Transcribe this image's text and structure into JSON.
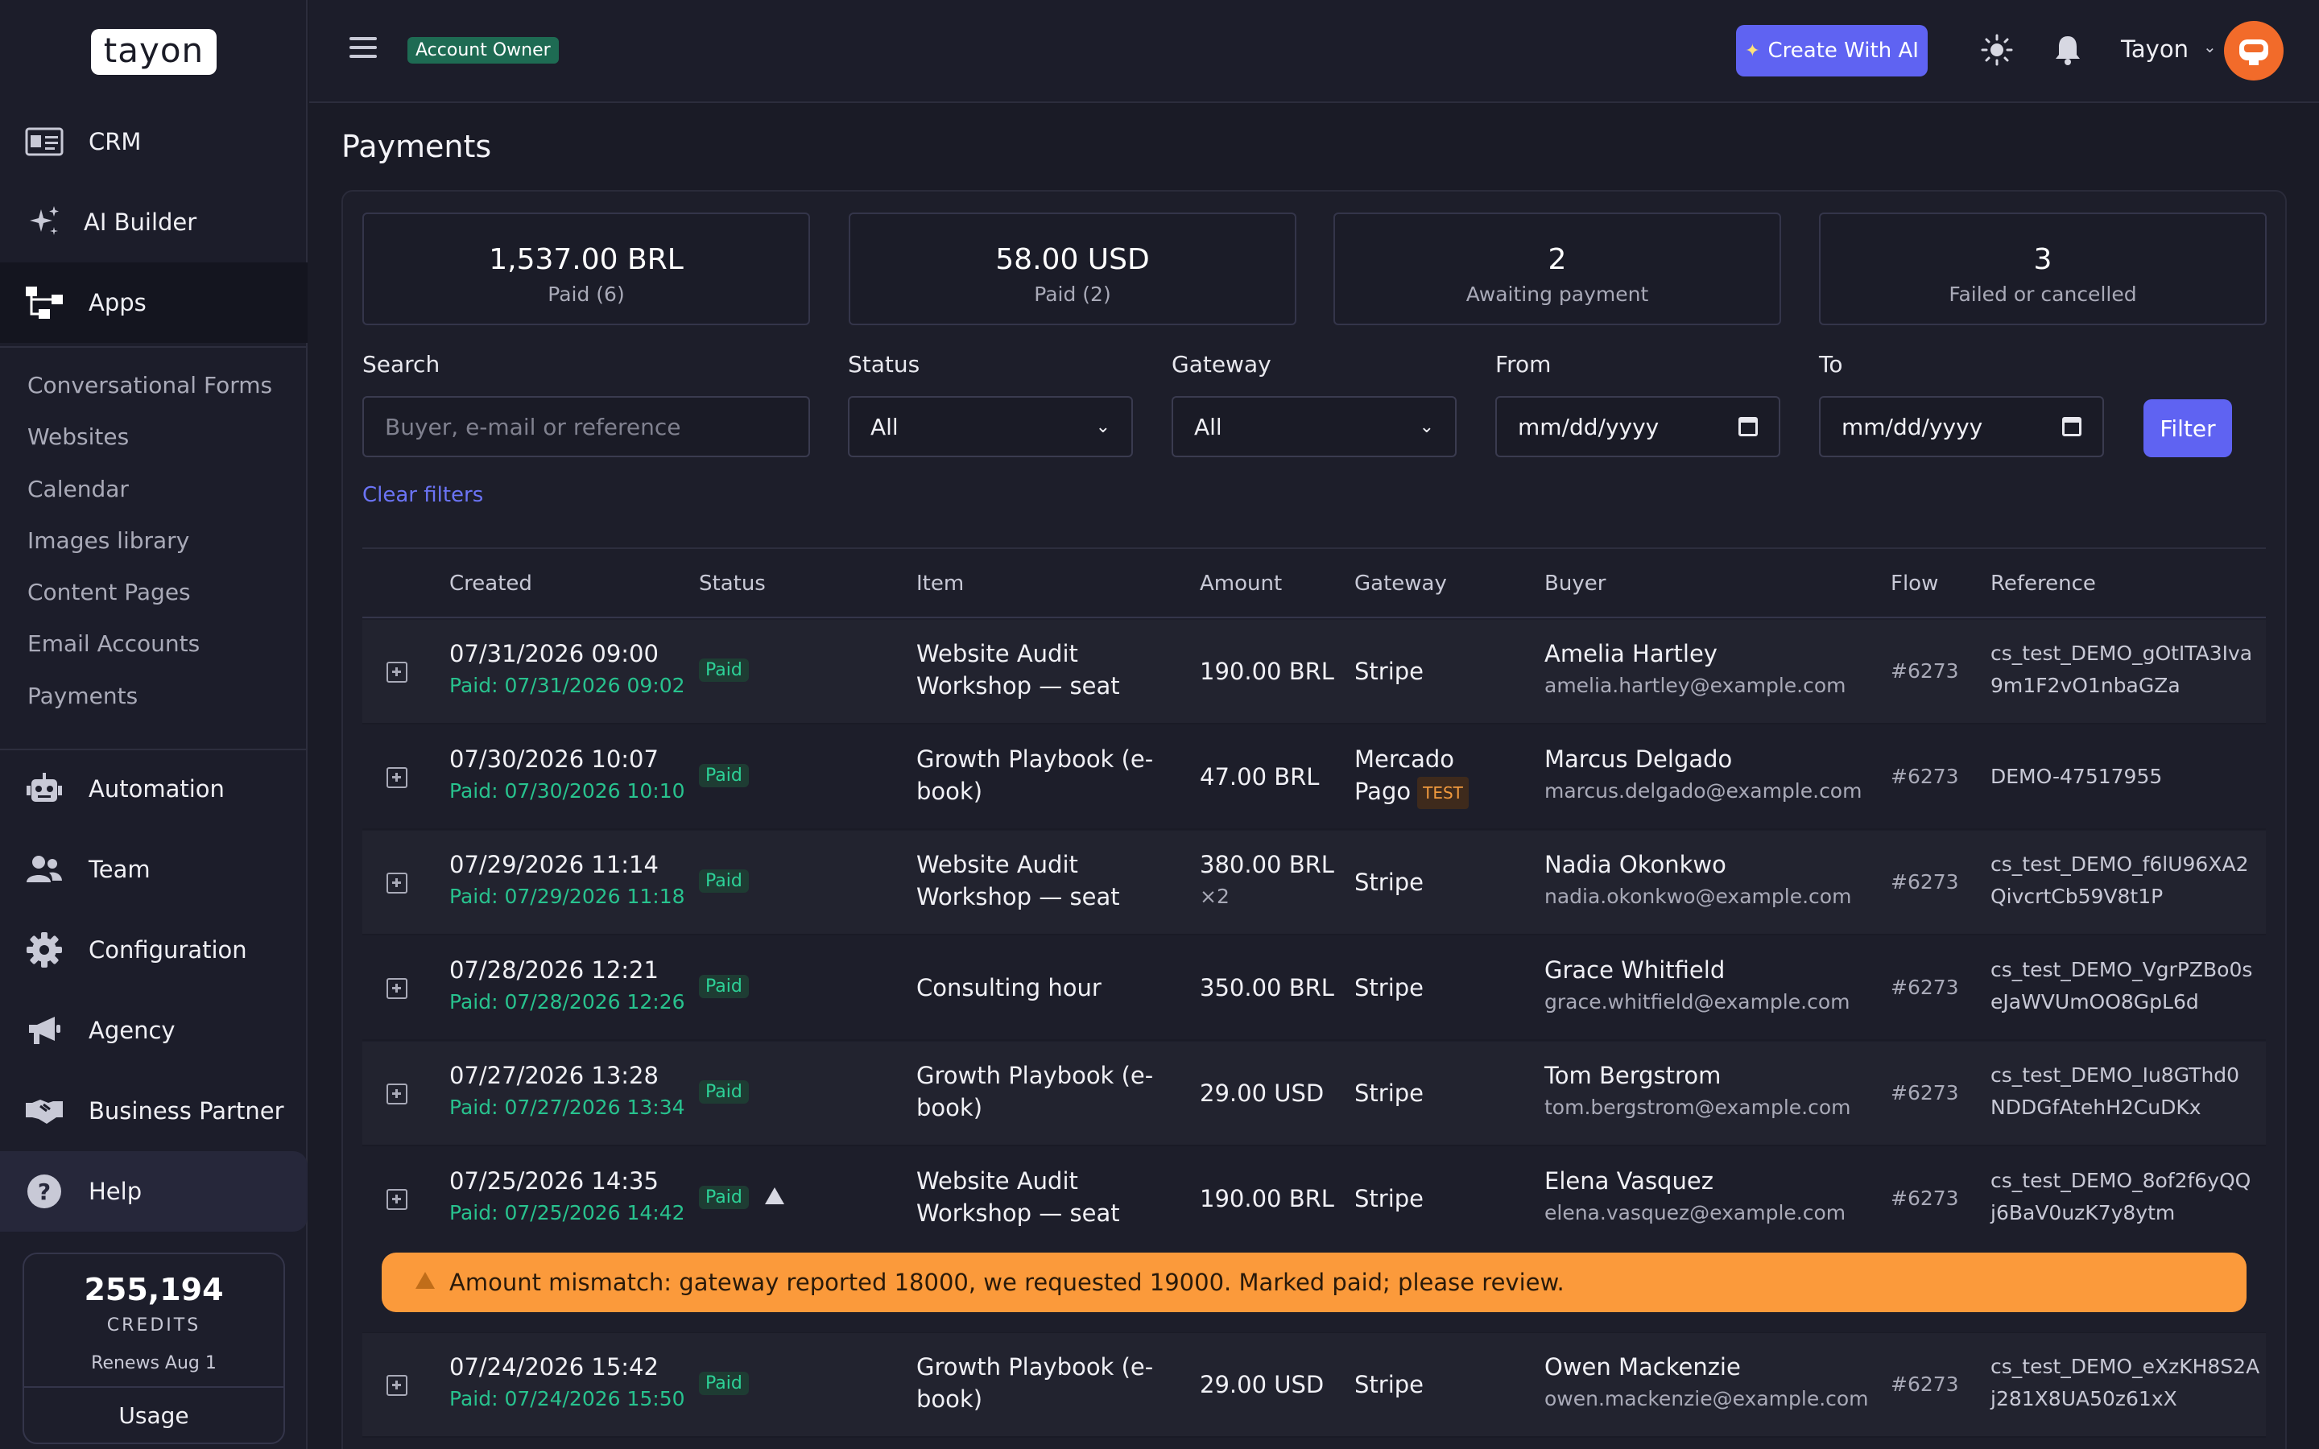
{
  "app": {
    "logo": "tayon"
  },
  "sidebar": {
    "items": [
      {
        "label": "CRM",
        "icon": "id-card-icon"
      },
      {
        "label": "AI Builder",
        "icon": "sparkles-icon"
      },
      {
        "label": "Apps",
        "icon": "sitemap-icon"
      },
      {
        "label": "Automation",
        "icon": "robot-icon"
      },
      {
        "label": "Team",
        "icon": "users-icon"
      },
      {
        "label": "Configuration",
        "icon": "gear-icon"
      },
      {
        "label": "Agency",
        "icon": "megaphone-icon"
      },
      {
        "label": "Business Partner",
        "icon": "handshake-icon"
      },
      {
        "label": "Help",
        "icon": "question-icon"
      }
    ],
    "apps_submenu": [
      "Conversational Forms",
      "Websites",
      "Calendar",
      "Images library",
      "Content Pages",
      "Email Accounts",
      "Payments"
    ],
    "credits": {
      "value": "255,194",
      "label": "CREDITS",
      "renews": "Renews Aug 1",
      "usage": "Usage"
    }
  },
  "topbar": {
    "role": "Account Owner",
    "ai_button": "Create With AI",
    "user": "Tayon"
  },
  "page": {
    "title": "Payments"
  },
  "stats": [
    {
      "value": "1,537.00 BRL",
      "label": "Paid (6)"
    },
    {
      "value": "58.00 USD",
      "label": "Paid (2)"
    },
    {
      "value": "2",
      "label": "Awaiting payment"
    },
    {
      "value": "3",
      "label": "Failed or cancelled"
    }
  ],
  "filters": {
    "search_label": "Search",
    "search_placeholder": "Buyer, e-mail or reference",
    "status_label": "Status",
    "status_value": "All",
    "gateway_label": "Gateway",
    "gateway_value": "All",
    "from_label": "From",
    "from_value": "mm/dd/yyyy",
    "to_label": "To",
    "to_value": "mm/dd/yyyy",
    "filter_button": "Filter",
    "clear": "Clear filters"
  },
  "table": {
    "headers": [
      "Created",
      "Status",
      "Item",
      "Amount",
      "Gateway",
      "Buyer",
      "Flow",
      "Reference"
    ],
    "rows": [
      {
        "created": "07/31/2026 09:00",
        "paid": "Paid: 07/31/2026 09:02",
        "status": "Paid",
        "item1": "Website Audit",
        "item2": "Workshop — seat",
        "amount": "190.00 BRL",
        "qty": "",
        "gateway1": "Stripe",
        "gateway2": "",
        "test": "",
        "buyer": "Amelia Hartley",
        "email": "amelia.hartley@example.com",
        "flow": "#6273",
        "ref1": "cs_test_DEMO_gOtITA3Iva",
        "ref2": "9m1F2vO1nbaGZa"
      },
      {
        "created": "07/30/2026 10:07",
        "paid": "Paid: 07/30/2026 10:10",
        "status": "Paid",
        "item1": "Growth Playbook (e-",
        "item2": "book)",
        "amount": "47.00 BRL",
        "qty": "",
        "gateway1": "Mercado",
        "gateway2": "Pago",
        "test": "TEST",
        "buyer": "Marcus Delgado",
        "email": "marcus.delgado@example.com",
        "flow": "#6273",
        "ref1": "DEMO-47517955",
        "ref2": ""
      },
      {
        "created": "07/29/2026 11:14",
        "paid": "Paid: 07/29/2026 11:18",
        "status": "Paid",
        "item1": "Website Audit",
        "item2": "Workshop — seat",
        "amount": "380.00 BRL",
        "qty": "×2",
        "gateway1": "Stripe",
        "gateway2": "",
        "test": "",
        "buyer": "Nadia Okonkwo",
        "email": "nadia.okonkwo@example.com",
        "flow": "#6273",
        "ref1": "cs_test_DEMO_f6lU96XA2",
        "ref2": "QivcrtCb59V8t1P"
      },
      {
        "created": "07/28/2026 12:21",
        "paid": "Paid: 07/28/2026 12:26",
        "status": "Paid",
        "item1": "Consulting hour",
        "item2": "",
        "amount": "350.00 BRL",
        "qty": "",
        "gateway1": "Stripe",
        "gateway2": "",
        "test": "",
        "buyer": "Grace Whitfield",
        "email": "grace.whitfield@example.com",
        "flow": "#6273",
        "ref1": "cs_test_DEMO_VgrPZBo0s",
        "ref2": "eJaWVUmOO8GpL6d"
      },
      {
        "created": "07/27/2026 13:28",
        "paid": "Paid: 07/27/2026 13:34",
        "status": "Paid",
        "item1": "Growth Playbook (e-",
        "item2": "book)",
        "amount": "29.00 USD",
        "qty": "",
        "gateway1": "Stripe",
        "gateway2": "",
        "test": "",
        "buyer": "Tom Bergstrom",
        "email": "tom.bergstrom@example.com",
        "flow": "#6273",
        "ref1": "cs_test_DEMO_Iu8GThd0",
        "ref2": "NDDGfAtehH2CuDKx"
      },
      {
        "created": "07/25/2026 14:35",
        "paid": "Paid: 07/25/2026 14:42",
        "status": "Paid",
        "item1": "Website Audit",
        "item2": "Workshop — seat",
        "amount": "190.00 BRL",
        "qty": "",
        "gateway1": "Stripe",
        "gateway2": "",
        "test": "",
        "buyer": "Elena Vasquez",
        "email": "elena.vasquez@example.com",
        "flow": "#6273",
        "ref1": "cs_test_DEMO_8of2f6yQQ",
        "ref2": "j6BaV0uzK7y8ytm"
      },
      {
        "created": "07/24/2026 15:42",
        "paid": "Paid: 07/24/2026 15:50",
        "status": "Paid",
        "item1": "Growth Playbook (e-",
        "item2": "book)",
        "amount": "29.00 USD",
        "qty": "",
        "gateway1": "Stripe",
        "gateway2": "",
        "test": "",
        "buyer": "Owen Mackenzie",
        "email": "owen.mackenzie@example.com",
        "flow": "#6273",
        "ref1": "cs_test_DEMO_eXzKH8S2A",
        "ref2": "j281X8UA50z61xX"
      }
    ],
    "alert": "Amount mismatch: gateway reported 18000, we requested 19000. Marked paid; please review."
  },
  "colors": {
    "accent": "#5f63f2",
    "paid": "#2dd197",
    "alert": "#fb9a3b"
  }
}
